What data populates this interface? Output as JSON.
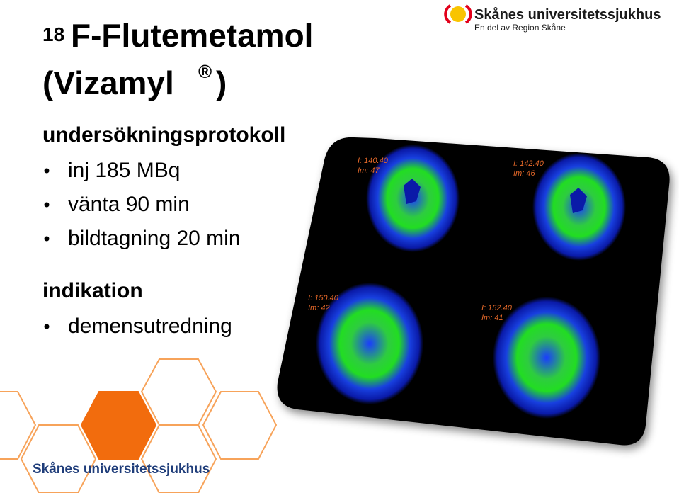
{
  "title": {
    "isotope": "18",
    "name": "F-Flutemetamol",
    "brand": "(Vizamyl",
    "mark": "®",
    "close": ")"
  },
  "logo": {
    "name": "Skånes universitetssjukhus",
    "tagline": "En del av Region Skåne"
  },
  "sections": [
    {
      "heading": "undersökningsprotokoll",
      "items": [
        "inj 185 MBq",
        "vänta 90 min",
        "bildtagning 20 min"
      ]
    },
    {
      "heading": "indikation",
      "items": [
        "demensutredning"
      ]
    }
  ],
  "scans": [
    {
      "line1": "I: 140.40",
      "line2": "Im: 47"
    },
    {
      "line1": "I: 142.40",
      "line2": "Im: 46"
    },
    {
      "line1": "I: 150.40",
      "line2": "Im: 42"
    },
    {
      "line1": "I: 152.40",
      "line2": "Im: 41"
    }
  ],
  "footer": "Skånes universitetssjukhus"
}
